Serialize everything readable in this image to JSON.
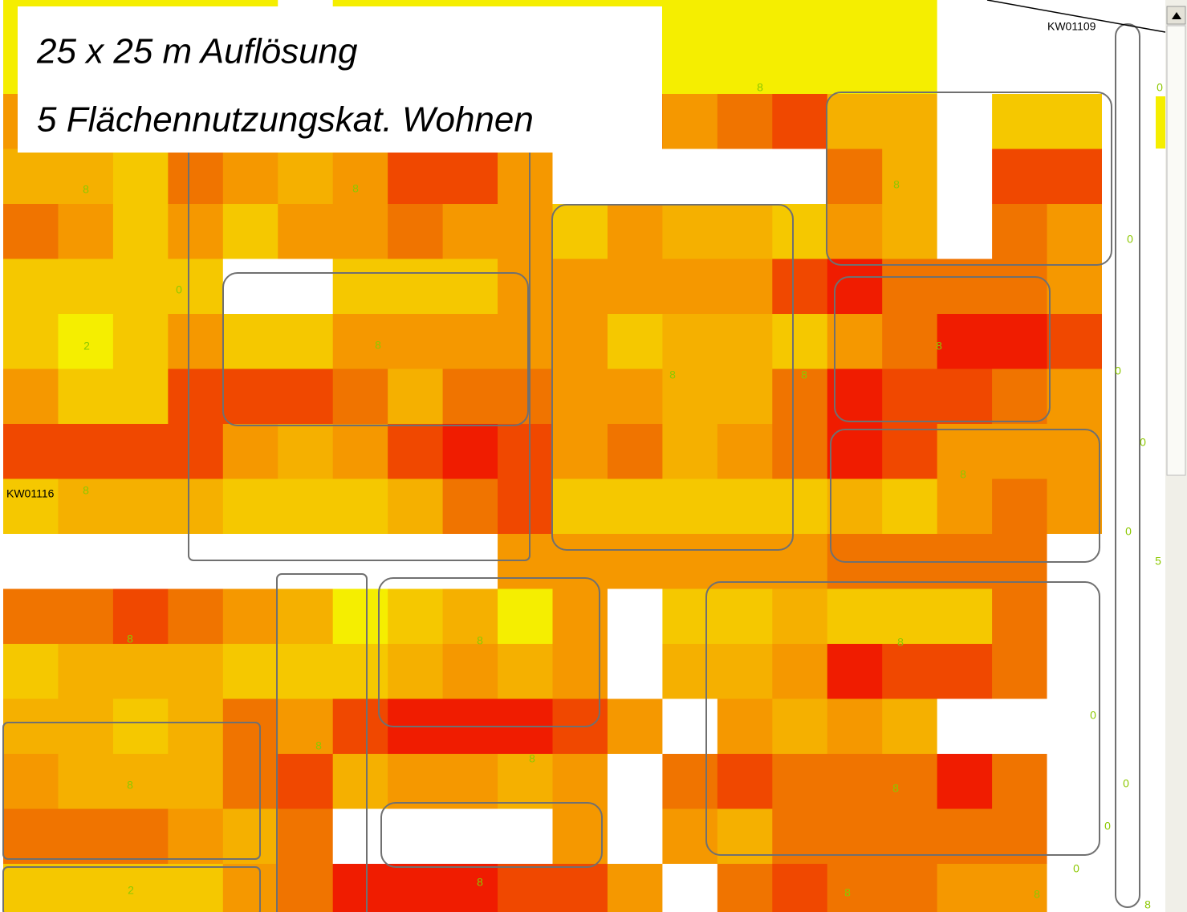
{
  "title_lines": [
    "25 x 25 m Auflösung",
    "5 Flächennutzungskat. Wohnen"
  ],
  "area_labels": [
    "KW01116",
    "KW01109"
  ],
  "cell_labels": [
    "8",
    "8",
    "8",
    "8",
    "0",
    "0",
    "2",
    "8",
    "8",
    "8",
    "8",
    "0",
    "0",
    "8",
    "8",
    "0",
    "5",
    "8",
    "8",
    "8",
    "0",
    "8",
    "8",
    "8",
    "8",
    "0",
    "0",
    "2",
    "8",
    "0",
    "8",
    "8",
    "8",
    "0"
  ]
}
